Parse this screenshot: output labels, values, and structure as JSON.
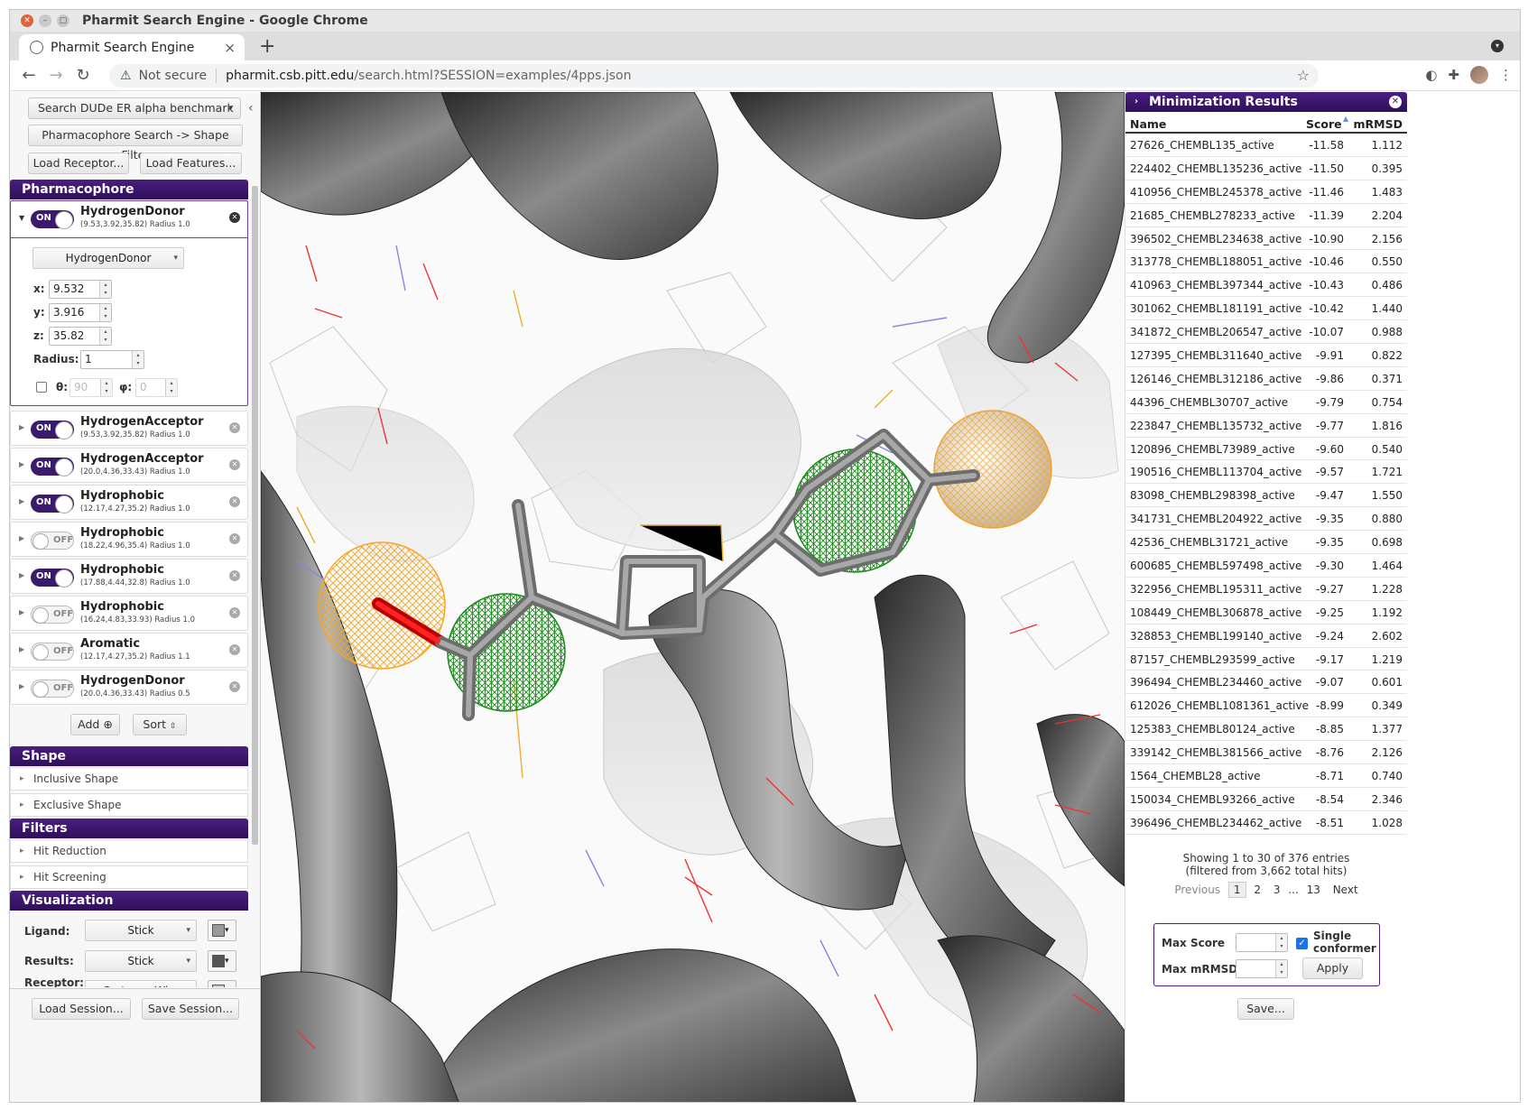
{
  "window": {
    "title": "Pharmit Search Engine - Google Chrome"
  },
  "tab": {
    "title": "Pharmit Search Engine",
    "close": "×",
    "new": "+"
  },
  "nav": {
    "back": "←",
    "forward": "→",
    "reload": "↻"
  },
  "address": {
    "warning": "⚠",
    "not_secure": "Not secure",
    "host": "pharmit.csb.pitt.edu",
    "path": "/search.html?SESSION=examples/4pps.json"
  },
  "left": {
    "search_select": "Search DUDe ER alpha benchmark",
    "collapse": "‹",
    "pharm_shape": "Pharmacophore Search -> Shape Filter",
    "load_receptor": "Load Receptor...",
    "load_features": "Load Features...",
    "pharmacophore_header": "Pharmacophore",
    "features": [
      {
        "state": "ON",
        "name": "HydrogenDonor",
        "sub": "(9.53,3.92,35.82) Radius 1.0"
      },
      {
        "state": "ON",
        "name": "HydrogenAcceptor",
        "sub": "(9.53,3.92,35.82) Radius 1.0"
      },
      {
        "state": "ON",
        "name": "HydrogenAcceptor",
        "sub": "(20.0,4.36,33.43) Radius 1.0"
      },
      {
        "state": "ON",
        "name": "Hydrophobic",
        "sub": "(12.17,4.27,35.2) Radius 1.0"
      },
      {
        "state": "OFF",
        "name": "Hydrophobic",
        "sub": "(18.22,4.96,35.4) Radius 1.0"
      },
      {
        "state": "ON",
        "name": "Hydrophobic",
        "sub": "(17.88,4.44,32.8) Radius 1.0"
      },
      {
        "state": "OFF",
        "name": "Hydrophobic",
        "sub": "(16.24,4.83,33.93) Radius 1.0"
      },
      {
        "state": "OFF",
        "name": "Aromatic",
        "sub": "(12.17,4.27,35.2) Radius 1.1"
      },
      {
        "state": "OFF",
        "name": "HydrogenDonor",
        "sub": "(20.0,4.36,33.43) Radius 0.5"
      }
    ],
    "editor": {
      "type": "HydrogenDonor",
      "x_label": "x:",
      "x": "9.532",
      "y_label": "y:",
      "y": "3.916",
      "z_label": "z:",
      "z": "35.82",
      "radius_label": "Radius:",
      "radius": "1",
      "theta_label": "θ:",
      "theta": "90",
      "phi_label": "φ:",
      "phi": "0"
    },
    "add": "Add",
    "sort": "Sort",
    "shape_header": "Shape",
    "inclusive": "Inclusive Shape",
    "exclusive": "Exclusive Shape",
    "filters_header": "Filters",
    "hit_reduction": "Hit Reduction",
    "hit_screening": "Hit Screening",
    "vis_header": "Visualization",
    "ligand_label": "Ligand:",
    "ligand_style": "Stick",
    "results_label": "Results:",
    "results_style": "Stick",
    "receptor_label": "Receptor:",
    "receptor_style": "Cartoon+Wire",
    "load_session": "Load Session...",
    "save_session": "Save Session..."
  },
  "results": {
    "header": "Minimization Results",
    "columns": {
      "name": "Name",
      "score": "Score",
      "rmsd": "mRMSD"
    },
    "rows": [
      [
        "27626_CHEMBL135_active",
        "-11.58",
        "1.112"
      ],
      [
        "224402_CHEMBL135236_active",
        "-11.50",
        "0.395"
      ],
      [
        "410956_CHEMBL245378_active",
        "-11.46",
        "1.483"
      ],
      [
        "21685_CHEMBL278233_active",
        "-11.39",
        "2.204"
      ],
      [
        "396502_CHEMBL234638_active",
        "-10.90",
        "2.156"
      ],
      [
        "313778_CHEMBL188051_active",
        "-10.46",
        "0.550"
      ],
      [
        "410963_CHEMBL397344_active",
        "-10.43",
        "0.486"
      ],
      [
        "301062_CHEMBL181191_active",
        "-10.42",
        "1.440"
      ],
      [
        "341872_CHEMBL206547_active",
        "-10.07",
        "0.988"
      ],
      [
        "127395_CHEMBL311640_active",
        "-9.91",
        "0.822"
      ],
      [
        "126146_CHEMBL312186_active",
        "-9.86",
        "0.371"
      ],
      [
        "44396_CHEMBL30707_active",
        "-9.79",
        "0.754"
      ],
      [
        "223847_CHEMBL135732_active",
        "-9.77",
        "1.816"
      ],
      [
        "120896_CHEMBL73989_active",
        "-9.60",
        "0.540"
      ],
      [
        "190516_CHEMBL113704_active",
        "-9.57",
        "1.721"
      ],
      [
        "83098_CHEMBL298398_active",
        "-9.47",
        "1.550"
      ],
      [
        "341731_CHEMBL204922_active",
        "-9.35",
        "0.880"
      ],
      [
        "42536_CHEMBL31721_active",
        "-9.35",
        "0.698"
      ],
      [
        "600685_CHEMBL597498_active",
        "-9.30",
        "1.464"
      ],
      [
        "322956_CHEMBL195311_active",
        "-9.27",
        "1.228"
      ],
      [
        "108449_CHEMBL306878_active",
        "-9.25",
        "1.192"
      ],
      [
        "328853_CHEMBL199140_active",
        "-9.24",
        "2.602"
      ],
      [
        "87157_CHEMBL293599_active",
        "-9.17",
        "1.219"
      ],
      [
        "396494_CHEMBL234460_active",
        "-9.07",
        "0.601"
      ],
      [
        "612026_CHEMBL1081361_active",
        "-8.99",
        "0.349"
      ],
      [
        "125383_CHEMBL80124_active",
        "-8.85",
        "1.377"
      ],
      [
        "339142_CHEMBL381566_active",
        "-8.76",
        "2.126"
      ],
      [
        "1564_CHEMBL28_active",
        "-8.71",
        "0.740"
      ],
      [
        "150034_CHEMBL93266_active",
        "-8.54",
        "2.346"
      ],
      [
        "396496_CHEMBL234462_active",
        "-8.51",
        "1.028"
      ]
    ],
    "info1": "Showing 1 to 30 of 376 entries",
    "info2": "(filtered from 3,662 total hits)",
    "pager": {
      "prev": "Previous",
      "p1": "1",
      "p2": "2",
      "p3": "3",
      "ellipsis": "...",
      "p13": "13",
      "next": "Next"
    },
    "max_score": "Max Score",
    "max_rmsd": "Max mRMSD",
    "single1": "Single",
    "single2": "conformer",
    "apply": "Apply",
    "save": "Save..."
  }
}
